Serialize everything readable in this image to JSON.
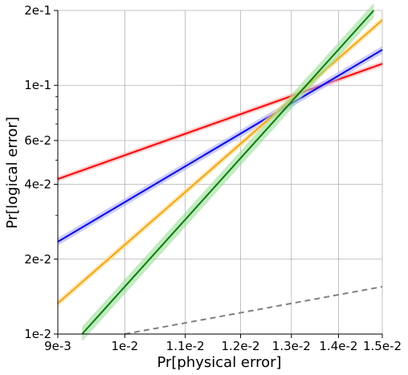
{
  "chart_data": {
    "type": "line",
    "title": "",
    "xlabel": "Pr[physical error]",
    "ylabel": "Pr[logical error]",
    "xscale": "log",
    "yscale": "log",
    "xlim": [
      0.009,
      0.015
    ],
    "ylim": [
      0.01,
      0.2
    ],
    "grid": true,
    "legend": "none",
    "x_ticks": [
      {
        "value": 0.009,
        "label": "9e-3"
      },
      {
        "value": 0.01,
        "label": "1e-2"
      },
      {
        "value": 0.011,
        "label": "1.1e-2"
      },
      {
        "value": 0.012,
        "label": "1.2e-2"
      },
      {
        "value": 0.013,
        "label": "1.3e-2"
      },
      {
        "value": 0.014,
        "label": "1.4e-2"
      },
      {
        "value": 0.015,
        "label": "1.5e-2"
      }
    ],
    "y_ticks": [
      {
        "value": 0.01,
        "label": "1e-2"
      },
      {
        "value": 0.02,
        "label": "2e-2"
      },
      {
        "value": 0.04,
        "label": "4e-2"
      },
      {
        "value": 0.06,
        "label": "6e-2"
      },
      {
        "value": 0.1,
        "label": "1e-1"
      },
      {
        "value": 0.2,
        "label": "2e-1"
      }
    ],
    "series": [
      {
        "color": "#ff0000",
        "band_color": "#ffaaaa",
        "band": 0.025,
        "points": [
          [
            0.009,
            0.042
          ],
          [
            0.015,
            0.122
          ]
        ]
      },
      {
        "color": "#0000ff",
        "band_color": "#aaaaff",
        "band": 0.035,
        "points": [
          [
            0.009,
            0.0235
          ],
          [
            0.015,
            0.139
          ]
        ]
      },
      {
        "color": "#ffa500",
        "band_color": "#ffd98a",
        "band": 0.03,
        "points": [
          [
            0.009,
            0.0133
          ],
          [
            0.015,
            0.183
          ]
        ]
      },
      {
        "color": "#008000",
        "band_color": "#99dd99",
        "band": 0.07,
        "points": [
          [
            0.00935,
            0.01
          ],
          [
            0.0148,
            0.2
          ]
        ]
      },
      {
        "color": "#808080",
        "dashed": true,
        "points": [
          [
            0.01,
            0.01
          ],
          [
            0.015,
            0.0155
          ]
        ]
      }
    ]
  }
}
